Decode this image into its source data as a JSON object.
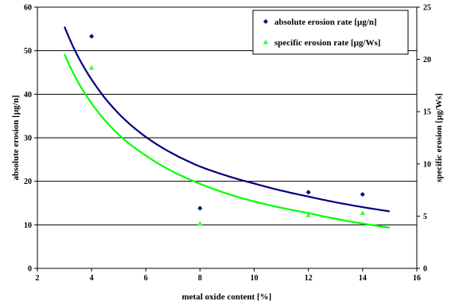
{
  "chart_data": {
    "type": "scatter",
    "title": "",
    "xlabel": "metal oxide content [%]",
    "ylabel": "absolute erosion [µg/n]",
    "y2label": "specific erosion [µg/Ws]",
    "xlim": [
      2,
      16
    ],
    "ylim": [
      0,
      60
    ],
    "y2lim": [
      0,
      25
    ],
    "x_ticks": [
      2,
      4,
      6,
      8,
      10,
      12,
      14,
      16
    ],
    "y_ticks": [
      0,
      10,
      20,
      30,
      40,
      50,
      60
    ],
    "y2_ticks": [
      0,
      5,
      10,
      15,
      20,
      25
    ],
    "grid": "horizontal",
    "legend_position": "top-right",
    "series": [
      {
        "name": "absolute erosion rate [µg/n]",
        "axis": "left",
        "marker": "diamond",
        "color": "#00007f",
        "points": [
          [
            4,
            53.3
          ],
          [
            8,
            13.8
          ],
          [
            12,
            17.5
          ],
          [
            14,
            17.0
          ]
        ],
        "trend": {
          "type": "power",
          "color": "#00007f",
          "x_range": [
            3,
            15
          ],
          "points": [
            [
              3,
              55.5
            ],
            [
              4,
              43.4
            ],
            [
              6,
              30.2
            ],
            [
              8,
              23.4
            ],
            [
              10,
              19.5
            ],
            [
              12,
              16.5
            ],
            [
              15,
              13.1
            ]
          ]
        }
      },
      {
        "name": "specific erosion rate [µg/Ws]",
        "axis": "right",
        "marker": "triangle",
        "color": "#33ff33",
        "points": [
          [
            4,
            19.2
          ],
          [
            8,
            4.3
          ],
          [
            12,
            5.1
          ],
          [
            14,
            5.3
          ]
        ],
        "trend": {
          "type": "power",
          "color": "#00ff00",
          "x_range": [
            3,
            15
          ],
          "points": [
            [
              3,
              20.5
            ],
            [
              4,
              15.8
            ],
            [
              6,
              10.8
            ],
            [
              8,
              8.1
            ],
            [
              10,
              6.4
            ],
            [
              12,
              5.3
            ],
            [
              15,
              3.9
            ]
          ]
        }
      }
    ]
  }
}
